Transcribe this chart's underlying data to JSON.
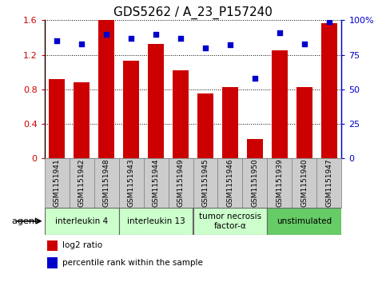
{
  "title": "GDS5262 / A_23_P157240",
  "samples": [
    "GSM1151941",
    "GSM1151942",
    "GSM1151948",
    "GSM1151943",
    "GSM1151944",
    "GSM1151949",
    "GSM1151945",
    "GSM1151946",
    "GSM1151950",
    "GSM1151939",
    "GSM1151940",
    "GSM1151947"
  ],
  "log2_ratio": [
    0.92,
    0.88,
    1.6,
    1.13,
    1.33,
    1.02,
    0.75,
    0.82,
    0.22,
    1.25,
    0.82,
    1.57
  ],
  "percentile": [
    85,
    83,
    90,
    87,
    90,
    87,
    80,
    82,
    58,
    91,
    83,
    99
  ],
  "bar_color": "#cc0000",
  "dot_color": "#0000cc",
  "left_yticks": [
    0,
    0.4,
    0.8,
    1.2,
    1.6
  ],
  "right_yticks": [
    0,
    25,
    50,
    75,
    100
  ],
  "ylim_left": [
    0,
    1.6
  ],
  "ylim_right": [
    0,
    100
  ],
  "agent_groups": [
    {
      "label": "interleukin 4",
      "start": 0,
      "end": 3,
      "color": "#ccffcc"
    },
    {
      "label": "interleukin 13",
      "start": 3,
      "end": 6,
      "color": "#ccffcc"
    },
    {
      "label": "tumor necrosis\nfactor-α",
      "start": 6,
      "end": 9,
      "color": "#ccffcc"
    },
    {
      "label": "unstimulated",
      "start": 9,
      "end": 12,
      "color": "#66cc66"
    }
  ],
  "legend_bar_label": "log2 ratio",
  "legend_dot_label": "percentile rank within the sample",
  "agent_label": "agent",
  "sample_box_color": "#cccccc",
  "sample_box_edge": "#888888",
  "title_fontsize": 11,
  "tick_fontsize": 8,
  "sample_fontsize": 6.5
}
